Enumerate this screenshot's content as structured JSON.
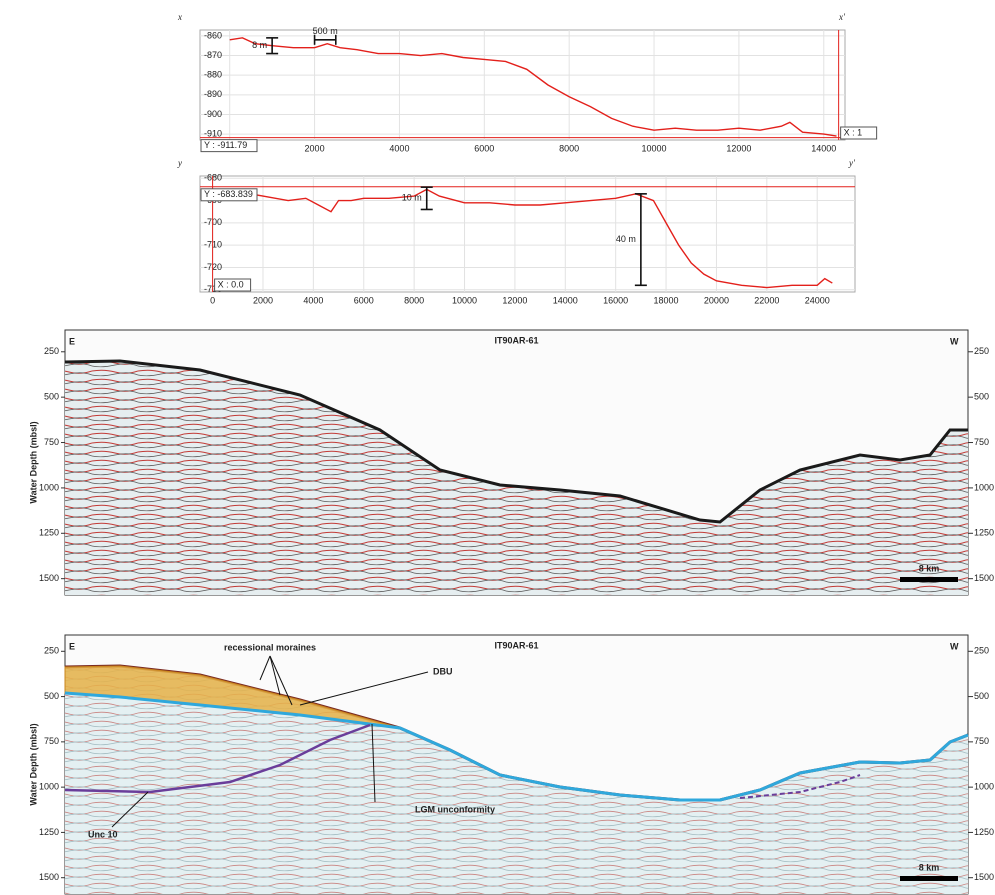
{
  "chart_data": [
    {
      "type": "line",
      "label_left": "x",
      "label_right": "x′",
      "x": [
        0,
        300,
        600,
        1000,
        1500,
        2000,
        2300,
        2600,
        3000,
        3500,
        4000,
        4500,
        5000,
        5500,
        6000,
        6500,
        7000,
        7500,
        8000,
        8500,
        9000,
        9500,
        10000,
        10500,
        11000,
        11500,
        12000,
        12500,
        13000,
        13200,
        13500,
        14000,
        14300
      ],
      "values": [
        -862,
        -861,
        -864,
        -865,
        -866,
        -866,
        -864,
        -866,
        -867,
        -869,
        -869,
        -870,
        -869,
        -871,
        -872,
        -873,
        -877,
        -885,
        -891,
        -896,
        -902,
        -906,
        -908,
        -907,
        -908,
        -908,
        -907,
        -908,
        -906,
        -904,
        -909,
        -910,
        -911
      ],
      "color": "#e3201b",
      "xlim": [
        -700,
        14500
      ],
      "ylim": [
        -913,
        -857
      ],
      "xticks": [
        0,
        2000,
        4000,
        6000,
        8000,
        10000,
        12000,
        14000
      ],
      "yticks": [
        -860,
        -870,
        -880,
        -890,
        -900,
        -910
      ],
      "grid": true,
      "cursor": {
        "x": {
          "value": 14350,
          "label": "X : 1"
        },
        "y": {
          "value": -911.79,
          "label": "Y : -911.79"
        }
      },
      "annotations": [
        {
          "text": "8 m",
          "x": [
            1000,
            1000
          ],
          "y": [
            -861,
            -869
          ]
        },
        {
          "text": "500 m",
          "x": [
            2000,
            2500
          ],
          "y": [
            -862,
            -862
          ]
        }
      ]
    },
    {
      "type": "line",
      "label_left": "y",
      "label_right": "y′",
      "x": [
        0,
        1000,
        2000,
        3000,
        3700,
        4200,
        4700,
        5000,
        5500,
        6000,
        7000,
        8000,
        8500,
        9000,
        10000,
        11000,
        12000,
        13000,
        14000,
        15000,
        16000,
        16800,
        17500,
        18000,
        18500,
        19000,
        19500,
        20000,
        21000,
        22000,
        23000,
        24000,
        24300,
        24600
      ],
      "values": [
        -685,
        -686,
        -688,
        -690,
        -689,
        -692,
        -695,
        -690,
        -690,
        -689,
        -689,
        -688,
        -685,
        -688,
        -691,
        -691,
        -692,
        -692,
        -691,
        -690,
        -689,
        -687,
        -690,
        -700,
        -710,
        -718,
        -723,
        -726,
        -728,
        -729,
        -728,
        -728,
        -725,
        -727
      ],
      "color": "#e3201b",
      "xlim": [
        -500,
        25500
      ],
      "ylim": [
        -731,
        -679
      ],
      "xticks": [
        0,
        2000,
        4000,
        6000,
        8000,
        10000,
        12000,
        14000,
        16000,
        18000,
        20000,
        22000,
        24000
      ],
      "yticks": [
        -680,
        -690,
        -700,
        -710,
        -720,
        -730
      ],
      "grid": true,
      "cursor": {
        "x": {
          "value": 0,
          "label": "X : 0.0"
        },
        "y": {
          "value": -683.839,
          "label": "Y : -683.839"
        }
      },
      "annotations": [
        {
          "text": "10 m",
          "x": [
            8500,
            8500
          ],
          "y": [
            -684,
            -694
          ]
        },
        {
          "text": "40 m",
          "x": [
            17000,
            17000
          ],
          "y": [
            -687,
            -728
          ]
        }
      ]
    },
    {
      "type": "seismic",
      "title": "IT90AR-61",
      "left_label": "E",
      "right_label": "W",
      "ylabel": "Water Depth (mbsl)",
      "ylim": [
        1590,
        130
      ],
      "yticks": [
        250,
        500,
        750,
        1000,
        1250,
        1500
      ],
      "scale_bar": "8 km",
      "annotations": []
    },
    {
      "type": "seismic",
      "title": "IT90AR-61",
      "left_label": "E",
      "right_label": "W",
      "ylabel": "Water Depth (mbsl)",
      "ylim": [
        1590,
        160
      ],
      "yticks": [
        250,
        500,
        750,
        1000,
        1250,
        1500
      ],
      "scale_bar": "8 km",
      "annotations": [
        "recessional moraines",
        "DBU",
        "LGM unconformity",
        "Unc 10"
      ]
    }
  ]
}
